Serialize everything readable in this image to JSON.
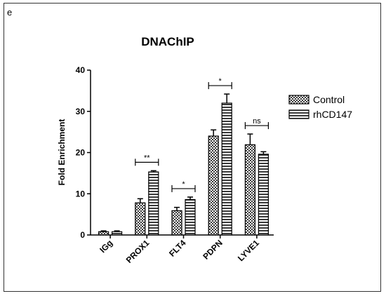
{
  "panel_label": "e",
  "chart_data": {
    "type": "bar",
    "title": "DNAChIP",
    "xlabel": "",
    "ylabel": "Fold Enrichment",
    "ylim": [
      0,
      40
    ],
    "yticks": [
      "0",
      "10",
      "20",
      "30",
      "40"
    ],
    "categories": [
      "IGg",
      "PROX1",
      "FLT4",
      "PDPN",
      "LYVE1"
    ],
    "series": [
      {
        "name": "Control",
        "pattern": "checker",
        "values": [
          0.8,
          7.8,
          5.9,
          24.0,
          21.9
        ],
        "errors": [
          0.2,
          1.0,
          0.8,
          1.5,
          2.6
        ]
      },
      {
        "name": "rhCD147",
        "pattern": "horizontal-stripes",
        "values": [
          0.8,
          15.3,
          8.6,
          32.0,
          19.6
        ],
        "errors": [
          0.2,
          0.3,
          0.6,
          2.2,
          0.6
        ]
      }
    ],
    "significance": [
      {
        "category": "PROX1",
        "label": "**"
      },
      {
        "category": "FLT4",
        "label": "*"
      },
      {
        "category": "PDPN",
        "label": "*"
      },
      {
        "category": "LYVE1",
        "label": "ns"
      }
    ],
    "legend_position": "right",
    "grid": false,
    "colors": {
      "bar_fill": "#ffffff",
      "bar_pattern": "#3a3a3a",
      "axis": "#000000"
    }
  }
}
